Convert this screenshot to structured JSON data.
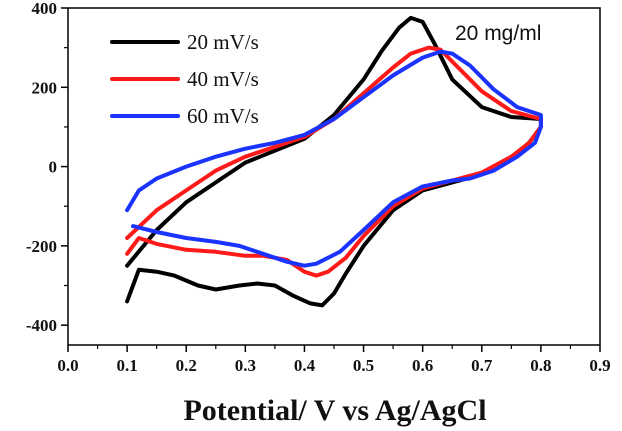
{
  "chart_data": {
    "type": "line",
    "title": "",
    "xlabel": "Potential/ V vs Ag/AgCl",
    "ylabel": "",
    "xlim": [
      0.0,
      0.9
    ],
    "ylim": [
      -450,
      400
    ],
    "x_ticks": [
      "0.0",
      "0.1",
      "0.2",
      "0.3",
      "0.4",
      "0.5",
      "0.6",
      "0.7",
      "0.8",
      "0.9"
    ],
    "y_ticks": [
      "400",
      "200",
      "0",
      "-200",
      "-400"
    ],
    "annotation": "20 mg/ml",
    "legend_position": "top-left",
    "grid": false,
    "series": [
      {
        "name": "20 mV/s",
        "color": "#000000",
        "x": [
          0.1,
          0.15,
          0.2,
          0.25,
          0.3,
          0.35,
          0.4,
          0.45,
          0.5,
          0.53,
          0.56,
          0.58,
          0.6,
          0.62,
          0.65,
          0.7,
          0.75,
          0.8,
          0.8,
          0.78,
          0.75,
          0.7,
          0.65,
          0.6,
          0.55,
          0.5,
          0.47,
          0.45,
          0.43,
          0.41,
          0.38,
          0.35,
          0.32,
          0.29,
          0.25,
          0.22,
          0.18,
          0.15,
          0.12,
          0.1
        ],
        "y": [
          -250,
          -160,
          -90,
          -40,
          10,
          40,
          70,
          130,
          220,
          290,
          350,
          375,
          365,
          310,
          220,
          150,
          125,
          120,
          100,
          60,
          20,
          -20,
          -40,
          -60,
          -110,
          -200,
          -270,
          -320,
          -350,
          -345,
          -325,
          -300,
          -295,
          -300,
          -310,
          -300,
          -275,
          -265,
          -260,
          -340
        ]
      },
      {
        "name": "40 mV/s",
        "color": "#ff1a1a",
        "x": [
          0.1,
          0.15,
          0.2,
          0.25,
          0.3,
          0.35,
          0.4,
          0.45,
          0.5,
          0.55,
          0.58,
          0.61,
          0.63,
          0.65,
          0.7,
          0.75,
          0.8,
          0.8,
          0.78,
          0.75,
          0.7,
          0.65,
          0.6,
          0.55,
          0.5,
          0.47,
          0.44,
          0.42,
          0.4,
          0.37,
          0.33,
          0.3,
          0.25,
          0.2,
          0.15,
          0.12,
          0.1
        ],
        "y": [
          -180,
          -110,
          -60,
          -10,
          25,
          50,
          75,
          120,
          185,
          250,
          285,
          300,
          295,
          265,
          190,
          140,
          120,
          100,
          60,
          25,
          -15,
          -35,
          -55,
          -100,
          -175,
          -230,
          -265,
          -275,
          -265,
          -235,
          -225,
          -225,
          -215,
          -210,
          -195,
          -180,
          -220
        ]
      },
      {
        "name": "60 mV/s",
        "color": "#1a33ff",
        "x": [
          0.1,
          0.12,
          0.15,
          0.2,
          0.25,
          0.3,
          0.35,
          0.4,
          0.45,
          0.5,
          0.55,
          0.6,
          0.63,
          0.65,
          0.68,
          0.72,
          0.76,
          0.8,
          0.8,
          0.79,
          0.76,
          0.72,
          0.68,
          0.65,
          0.6,
          0.55,
          0.5,
          0.46,
          0.42,
          0.4,
          0.37,
          0.33,
          0.29,
          0.25,
          0.2,
          0.15,
          0.11
        ],
        "y": [
          -110,
          -60,
          -30,
          0,
          25,
          45,
          60,
          80,
          120,
          175,
          230,
          275,
          290,
          285,
          255,
          195,
          150,
          130,
          100,
          60,
          25,
          -10,
          -30,
          -35,
          -50,
          -90,
          -160,
          -215,
          -245,
          -250,
          -240,
          -220,
          -200,
          -190,
          -180,
          -165,
          -150
        ]
      }
    ]
  }
}
